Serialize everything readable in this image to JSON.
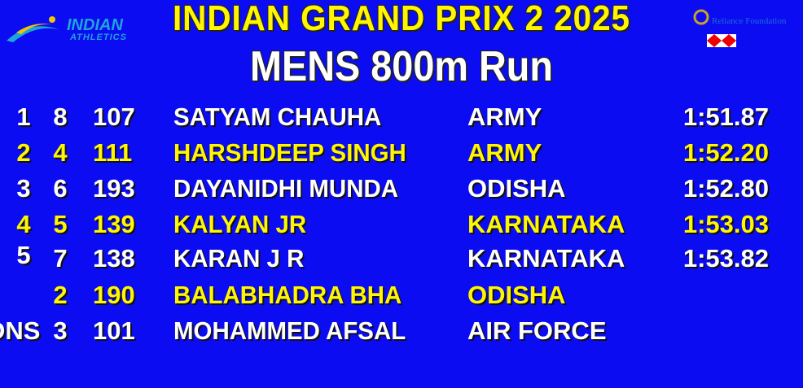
{
  "header": {
    "event": "INDIAN GRAND PRIX 2 2025",
    "race": "MENS 800m Run",
    "logo_left": {
      "line1": "INDIAN",
      "line2": "ATHLETICS"
    },
    "logo_right": {
      "sponsor1": "Reliance Foundation",
      "sponsor2": "HSBC"
    }
  },
  "colors": {
    "background": "#0b0cf2",
    "highlight": "#fff600",
    "text": "#ffffff"
  },
  "results": [
    {
      "rank": "1",
      "lane": "8",
      "bib": "107",
      "name": "SATYAM CHAUHA",
      "team": "ARMY",
      "time": "1:51.87"
    },
    {
      "rank": "2",
      "lane": "4",
      "bib": "111",
      "name": "HARSHDEEP SINGH",
      "team": "ARMY",
      "time": "1:52.20"
    },
    {
      "rank": "3",
      "lane": "6",
      "bib": "193",
      "name": "DAYANIDHI MUNDA",
      "team": "ODISHA",
      "time": "1:52.80"
    },
    {
      "rank": "4",
      "lane": "5",
      "bib": "139",
      "name": "KALYAN JR",
      "team": "KARNATAKA",
      "time": "1:53.03"
    },
    {
      "rank": "5",
      "lane": "7",
      "bib": "138",
      "name": "KARAN J R",
      "team": "KARNATAKA",
      "time": "1:53.82"
    },
    {
      "rank": "",
      "lane": "2",
      "bib": "190",
      "name": "BALABHADRA BHA",
      "team": "ODISHA",
      "time": ""
    },
    {
      "rank": "DNS",
      "lane": "3",
      "bib": "101",
      "name": "MOHAMMED AFSAL",
      "team": "AIR FORCE",
      "time": ""
    }
  ]
}
